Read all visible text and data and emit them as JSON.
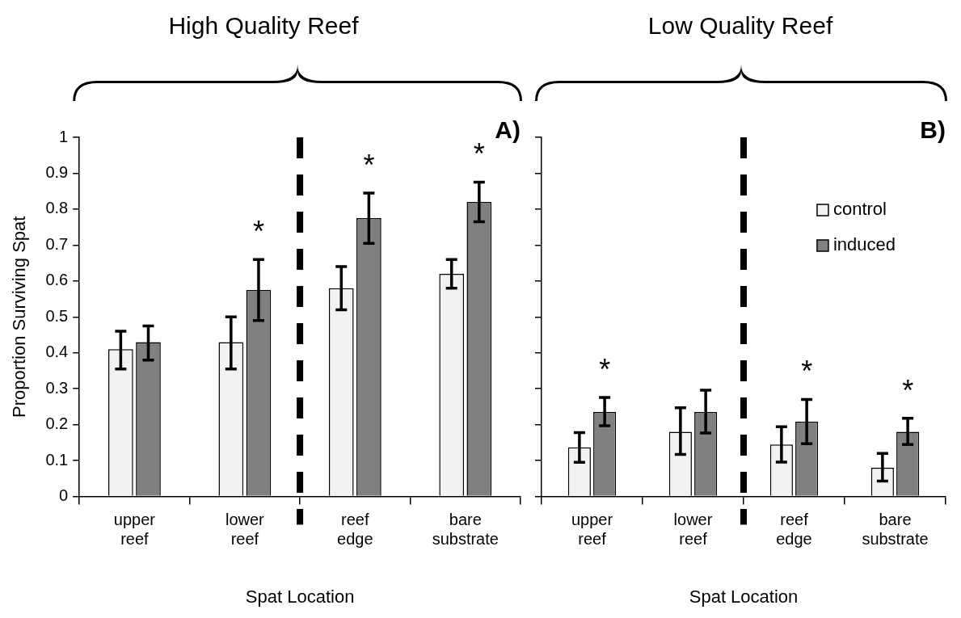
{
  "chart_data": [
    {
      "type": "bar",
      "title": "High Quality Reef",
      "xlabel": "Spat Location",
      "ylabel": "Proportion Surviving Spat",
      "categories": [
        "upper reef",
        "lower reef",
        "reef edge",
        "bare substrate"
      ],
      "series": [
        {
          "color": "#f2f2f2",
          "values": [
            0.41,
            0.43,
            0.58,
            0.62
          ],
          "errors": [
            [
              0.355,
              0.46
            ],
            [
              0.355,
              0.5
            ],
            [
              0.52,
              0.64
            ],
            [
              0.58,
              0.66
            ]
          ]
        },
        {
          "color": "#808080",
          "values": [
            0.43,
            0.575,
            0.775,
            0.82
          ],
          "errors": [
            [
              0.38,
              0.475
            ],
            [
              0.49,
              0.66
            ],
            [
              0.705,
              0.845
            ],
            [
              0.765,
              0.875
            ]
          ]
        }
      ],
      "ylim": [
        0,
        1
      ],
      "yticks": [
        0,
        0.1,
        0.2,
        0.3,
        0.4,
        0.5,
        0.6,
        0.7,
        0.8,
        0.9,
        1
      ],
      "annotations": [
        "A)",
        {
          "text": "*",
          "x": "lower reef",
          "y": 0.575
        },
        {
          "text": "*",
          "x": "reef edge",
          "y": 0.775
        },
        {
          "text": "*",
          "x": "bare substrate",
          "y": 0.82
        }
      ]
    },
    {
      "type": "bar",
      "title": "Low Quality Reef",
      "xlabel": "Spat Location",
      "categories": [
        "upper reef",
        "lower reef",
        "reef edge",
        "bare substrate"
      ],
      "series": [
        {
          "name": "control",
          "color": "#f2f2f2",
          "values": [
            0.137,
            0.18,
            0.145,
            0.08
          ],
          "errors": [
            [
              0.095,
              0.178
            ],
            [
              0.117,
              0.247
            ],
            [
              0.096,
              0.194
            ],
            [
              0.043,
              0.12
            ]
          ]
        },
        {
          "name": "induced",
          "color": "#808080",
          "values": [
            0.235,
            0.235,
            0.208,
            0.18
          ],
          "errors": [
            [
              0.197,
              0.276
            ],
            [
              0.177,
              0.296
            ],
            [
              0.147,
              0.27
            ],
            [
              0.145,
              0.218
            ]
          ]
        }
      ],
      "ylim": [
        0,
        1
      ],
      "yticks": [
        0,
        0.1,
        0.2,
        0.3,
        0.4,
        0.5,
        0.6,
        0.7,
        0.8,
        0.9,
        1
      ],
      "tick_labels": "x",
      "legend": "top right",
      "annotations": [
        "B)",
        {
          "text": "*",
          "x": "upper reef",
          "y": 0.235
        },
        {
          "text": "*",
          "x": "reef edge",
          "y": 0.208
        },
        {
          "text": "*",
          "x": "bare substrate",
          "y": 0.18
        }
      ]
    }
  ]
}
